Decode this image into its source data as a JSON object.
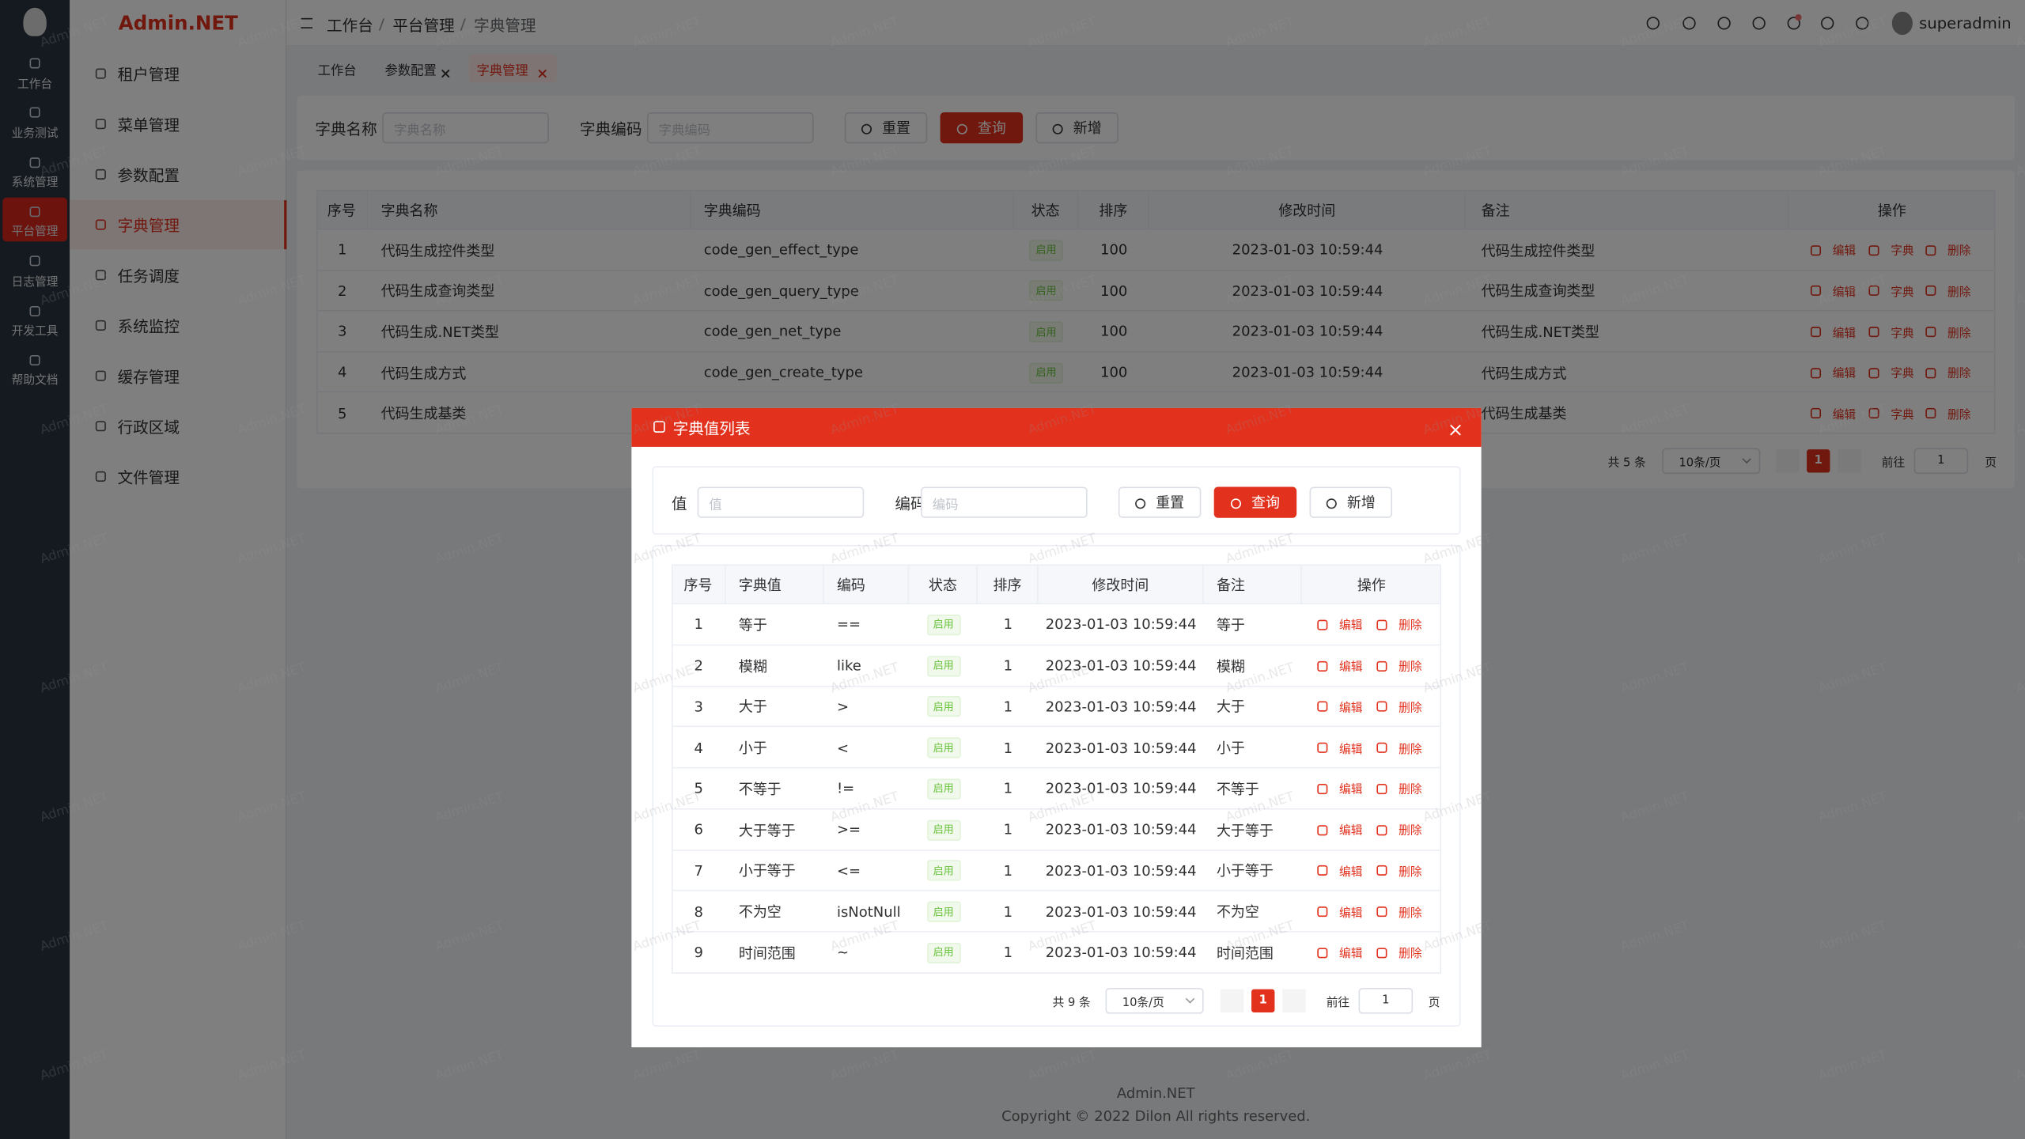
{
  "brand": "Admin.NET",
  "rail": [
    "工作台",
    "业务测试",
    "系统管理",
    "平台管理",
    "日志管理",
    "开发工具",
    "帮助文档"
  ],
  "menu": [
    "租户管理",
    "菜单管理",
    "参数配置",
    "字典管理",
    "任务调度",
    "系统监控",
    "缓存管理",
    "行政区域",
    "文件管理"
  ],
  "breadcrumb": [
    "工作台",
    "平台管理",
    "字典管理"
  ],
  "user": "superadmin",
  "tabs": [
    "工作台",
    "参数配置",
    "字典管理"
  ],
  "search": {
    "fields": [
      {
        "label": "字典名称",
        "placeholder": "字典名称"
      },
      {
        "label": "字典编码",
        "placeholder": "字典编码"
      }
    ],
    "buttons": [
      "重置",
      "查询",
      "新增"
    ]
  },
  "table": {
    "headers": [
      "序号",
      "字典名称",
      "字典编码",
      "状态",
      "排序",
      "修改时间",
      "备注",
      "操作"
    ],
    "rows": [
      [
        "1",
        "代码生成控件类型",
        "code_gen_effect_type",
        "启用",
        "100",
        "2023-01-03 10:59:44",
        "代码生成控件类型"
      ],
      [
        "2",
        "代码生成查询类型",
        "code_gen_query_type",
        "启用",
        "100",
        "2023-01-03 10:59:44",
        "代码生成查询类型"
      ],
      [
        "3",
        "代码生成.NET类型",
        "code_gen_net_type",
        "启用",
        "100",
        "2023-01-03 10:59:44",
        "代码生成.NET类型"
      ],
      [
        "4",
        "代码生成方式",
        "code_gen_create_type",
        "启用",
        "100",
        "2023-01-03 10:59:44",
        "代码生成方式"
      ],
      [
        "5",
        "代码生成基类",
        null,
        null,
        null,
        null,
        "代码生成基类"
      ]
    ],
    "actions": [
      "编辑",
      "字典",
      "删除"
    ]
  },
  "pagination": {
    "total": "共 5 条",
    "size": "10条/页",
    "page": "1",
    "goto": "前往",
    "goto_value": "1",
    "unit": "页"
  },
  "dialog": {
    "title": "字典值列表",
    "search": {
      "fields": [
        {
          "label": "值",
          "placeholder": "值"
        },
        {
          "label": "编码",
          "placeholder": "编码"
        }
      ],
      "buttons": [
        "重置",
        "查询",
        "新增"
      ]
    },
    "table": {
      "headers": [
        "序号",
        "字典值",
        "编码",
        "状态",
        "排序",
        "修改时间",
        "备注",
        "操作"
      ],
      "rows": [
        [
          "1",
          "等于",
          "==",
          "启用",
          "1",
          "2023-01-03 10:59:44",
          "等于"
        ],
        [
          "2",
          "模糊",
          "like",
          "启用",
          "1",
          "2023-01-03 10:59:44",
          "模糊"
        ],
        [
          "3",
          "大于",
          ">",
          "启用",
          "1",
          "2023-01-03 10:59:44",
          "大于"
        ],
        [
          "4",
          "小于",
          "<",
          "启用",
          "1",
          "2023-01-03 10:59:44",
          "小于"
        ],
        [
          "5",
          "不等于",
          "!=",
          "启用",
          "1",
          "2023-01-03 10:59:44",
          "不等于"
        ],
        [
          "6",
          "大于等于",
          ">=",
          "启用",
          "1",
          "2023-01-03 10:59:44",
          "大于等于"
        ],
        [
          "7",
          "小于等于",
          "<=",
          "启用",
          "1",
          "2023-01-03 10:59:44",
          "小于等于"
        ],
        [
          "8",
          "不为空",
          "isNotNull",
          "启用",
          "1",
          "2023-01-03 10:59:44",
          "不为空"
        ],
        [
          "9",
          "时间范围",
          "~",
          "启用",
          "1",
          "2023-01-03 10:59:44",
          "时间范围"
        ]
      ],
      "actions": [
        "编辑",
        "删除"
      ]
    },
    "pagination": {
      "total": "共 9 条",
      "size": "10条/页",
      "page": "1",
      "goto": "前往",
      "goto_value": "1",
      "unit": "页"
    }
  },
  "footer": {
    "name": "Admin.NET",
    "copyright": "Copyright © 2022 Dilon All rights reserved."
  },
  "watermark": "Admin.NET"
}
